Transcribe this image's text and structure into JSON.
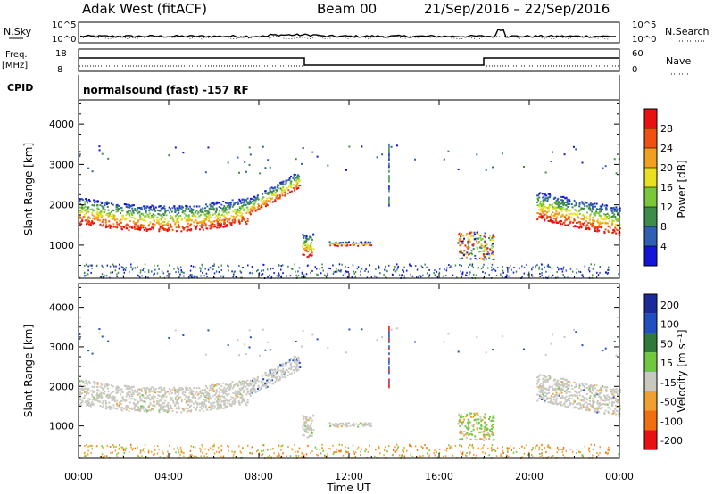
{
  "header": {
    "site": "Adak West (fitACF)",
    "beam": "Beam 00",
    "dates": "21/Sep/2016 – 22/Sep/2016"
  },
  "summary": {
    "nsky_label": "N.Sky",
    "nsky_ticks": [
      "10^5",
      "10^0"
    ],
    "nsearch_label": "N.Search",
    "nsearch_ticks": [
      "10^5",
      "10^0"
    ],
    "freq_label": "Freq.",
    "freq_unit": "[MHz]",
    "freq_ticks": [
      "18",
      "8"
    ],
    "nave_label": "Nave",
    "nave_ticks": [
      "60",
      "0"
    ],
    "cpid_label": "CPID",
    "cpid_text": "normalsound (fast) -157 RF"
  },
  "chart_data": [
    {
      "type": "heatmap",
      "name": "power",
      "ylabel": "Slant Range [km]",
      "yticks": [
        1000,
        2000,
        3000,
        4000
      ],
      "ylim": [
        180,
        4600
      ],
      "xlim": [
        0,
        24
      ],
      "colorbar_label": "Power [dB]",
      "colorbar_ticks": [
        "4",
        "8",
        "12",
        "16",
        "20",
        "24",
        "28"
      ],
      "colors": [
        "#1515d8",
        "#2e5fb0",
        "#3e8c4a",
        "#7ac83a",
        "#e8e020",
        "#f0a020",
        "#f05010",
        "#e81010"
      ],
      "bands": [
        {
          "t0": 0.0,
          "t1": 7.5,
          "r0": 1500,
          "r1": 2300
        },
        {
          "t0": 7.5,
          "t1": 9.8,
          "r0": 1850,
          "r1": 2900
        },
        {
          "t0": 9.9,
          "t1": 10.4,
          "r0": 700,
          "r1": 1300
        },
        {
          "t0": 11.0,
          "t1": 13.0,
          "r0": 1000,
          "r1": 1100
        },
        {
          "t0": 16.8,
          "t1": 18.4,
          "r0": 600,
          "r1": 1400
        },
        {
          "t0": 20.3,
          "t1": 24.0,
          "r0": 1400,
          "r1": 2500
        }
      ]
    },
    {
      "type": "heatmap",
      "name": "velocity",
      "ylabel": "Slant Range [km]",
      "xlabel": "Time UT",
      "yticks": [
        1000,
        2000,
        3000,
        4000
      ],
      "ylim": [
        180,
        4600
      ],
      "xlim": [
        0,
        24
      ],
      "xticks": [
        "00:00",
        "04:00",
        "08:00",
        "12:00",
        "16:00",
        "20:00",
        "00:00"
      ],
      "colorbar_label": "Velocity [m s⁻¹]",
      "colorbar_ticks": [
        "200",
        "100",
        "50",
        "15",
        "-15",
        "-50",
        "-100",
        "-200"
      ],
      "colors": [
        "#1a2a9a",
        "#2050c0",
        "#2f7a3a",
        "#70c840",
        "#c8c8c0",
        "#f0a030",
        "#f07010",
        "#e81010"
      ]
    }
  ]
}
